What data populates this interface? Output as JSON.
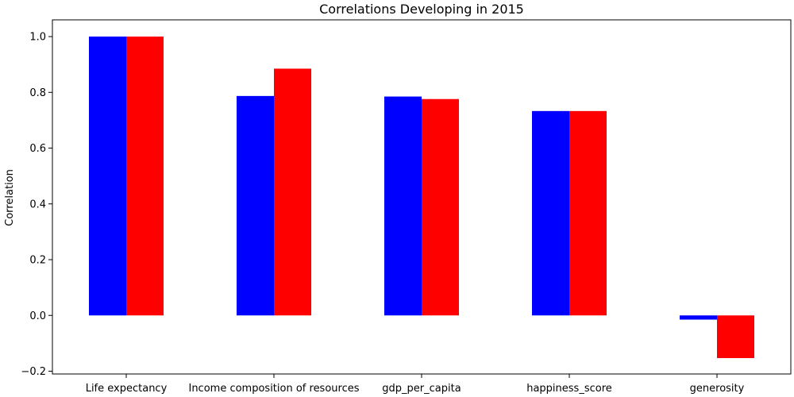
{
  "chart_data": {
    "type": "bar",
    "title": "Correlations Developing in 2015",
    "xlabel": "",
    "ylabel": "Correlation",
    "ylim": [
      -0.21,
      1.06
    ],
    "yticks": [
      -0.2,
      0.0,
      0.2,
      0.4,
      0.6,
      0.8,
      1.0
    ],
    "categories": [
      "Life expectancy",
      "Income composition of resources",
      "gdp_per_capita",
      "happiness_score",
      "generosity"
    ],
    "series": [
      {
        "color": "#0000ff",
        "values": [
          1.0,
          0.787,
          0.785,
          0.733,
          -0.015
        ]
      },
      {
        "color": "#ff0000",
        "values": [
          1.0,
          0.885,
          0.776,
          0.733,
          -0.153
        ]
      }
    ],
    "grid": false,
    "legend": "none"
  }
}
